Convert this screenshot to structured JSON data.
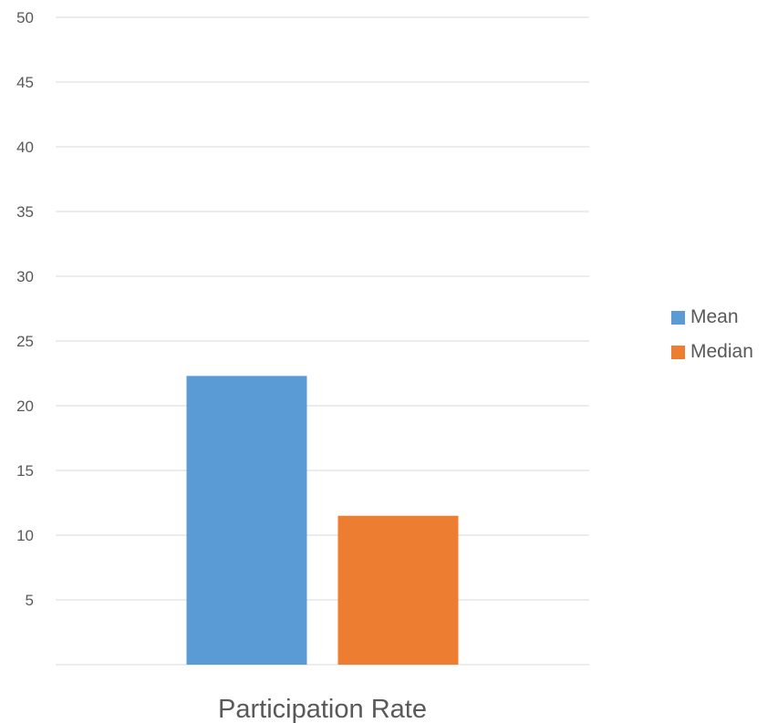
{
  "chart_data": {
    "type": "bar",
    "categories": [
      "Participation Rate"
    ],
    "series": [
      {
        "name": "Mean",
        "values": [
          22.3
        ],
        "color": "#5B9BD5"
      },
      {
        "name": "Median",
        "values": [
          11.5
        ],
        "color": "#ED7D31"
      }
    ],
    "title": "",
    "xlabel": "",
    "ylabel": "",
    "ylim": [
      0,
      50
    ],
    "yticks": [
      5,
      10,
      15,
      20,
      25,
      30,
      35,
      40,
      45,
      50
    ],
    "grid": true,
    "legend_position": "right"
  }
}
